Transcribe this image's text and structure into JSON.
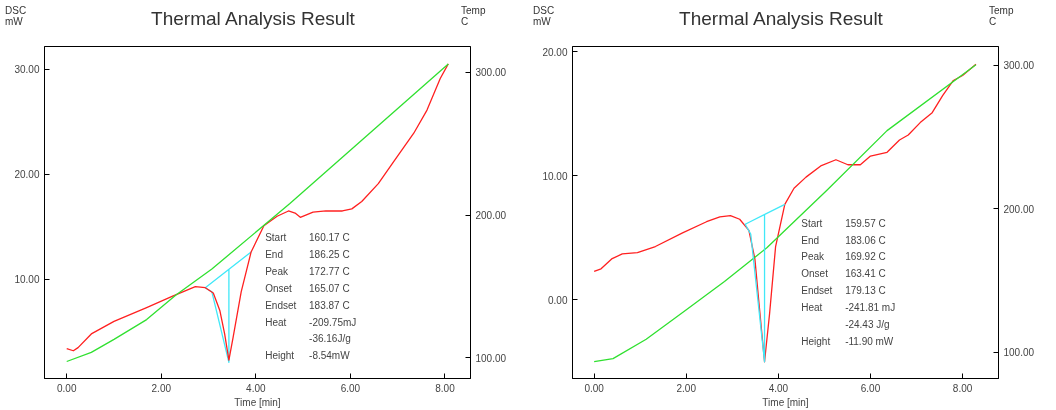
{
  "chart_data": [
    {
      "type": "line",
      "title": "Thermal Analysis Result",
      "xlabel": "Time [min]",
      "ylabel": "DSC\nmW",
      "y2label": "Temp\nC",
      "xlim": [
        -0.47,
        8.54
      ],
      "ylim": [
        0.56,
        32.15
      ],
      "y2lim": [
        85.6,
        317.9
      ],
      "xticks": [
        {
          "value": 0,
          "label": "0.00"
        },
        {
          "value": 2,
          "label": "2.00"
        },
        {
          "value": 4,
          "label": "4.00"
        },
        {
          "value": 6,
          "label": "6.00"
        },
        {
          "value": 8,
          "label": "8.00"
        }
      ],
      "yticks": [
        {
          "value": 10,
          "label": "10.00"
        },
        {
          "value": 20,
          "label": "20.00"
        },
        {
          "value": 30,
          "label": "30.00"
        }
      ],
      "y2ticks": [
        {
          "value": 100,
          "label": "100.00"
        },
        {
          "value": 200,
          "label": "200.00"
        },
        {
          "value": 300,
          "label": "300.00"
        }
      ],
      "grid": false,
      "series": [
        {
          "color": "#40e8f8",
          "x": [
            3.9,
            2.93,
            3.07,
            3.43,
            3.43
          ],
          "values": [
            12.6,
            9.2,
            8.8,
            2.1,
            10.9
          ]
        },
        {
          "color": "#ff2020",
          "x": [
            0,
            0.14,
            0.24,
            0.52,
            1.0,
            1.69,
            2.24,
            2.72,
            2.93,
            3.1,
            3.24,
            3.34,
            3.43,
            3.52,
            3.69,
            3.9,
            4.17,
            4.45,
            4.69,
            4.83,
            4.94,
            5.21,
            5.48,
            5.83,
            6.03,
            6.24,
            6.59,
            6.93,
            7.34,
            7.62,
            7.9,
            8.07
          ],
          "values": [
            3.4,
            3.2,
            3.5,
            4.8,
            6.0,
            7.3,
            8.4,
            9.3,
            9.2,
            8.7,
            7.0,
            4.8,
            2.3,
            4.5,
            8.8,
            12.6,
            15.1,
            16.0,
            16.5,
            16.3,
            15.9,
            16.4,
            16.5,
            16.5,
            16.7,
            17.4,
            19.1,
            21.3,
            23.9,
            26.1,
            29.1,
            30.5
          ]
        },
        {
          "color": "#30e030",
          "axis": "y2",
          "x": [
            0,
            0.52,
            1.0,
            1.69,
            2.31,
            3.07,
            4.72,
            8.07
          ],
          "values": [
            97.5,
            103.9,
            113,
            126.8,
            144,
            162.2,
            208,
            305.7
          ]
        }
      ],
      "annotations": [
        "Start  160.17 C",
        "End  186.25 C",
        "Peak  172.77 C",
        "Onset  165.07 C",
        "Endset  183.87 C",
        "Heat  -209.75mJ",
        "-36.16J/g",
        "Height  -8.54mW"
      ]
    },
    {
      "type": "line",
      "title": "Thermal Analysis Result",
      "xlabel": "Time [min]",
      "ylabel": "DSC\nmW",
      "y2label": "Temp\nC",
      "xlim": [
        -0.47,
        8.78
      ],
      "ylim": [
        -6.35,
        20.44
      ],
      "y2lim": [
        81.6,
        313.2
      ],
      "xticks": [
        {
          "value": 0,
          "label": "0.00"
        },
        {
          "value": 2,
          "label": "2.00"
        },
        {
          "value": 4,
          "label": "4.00"
        },
        {
          "value": 6,
          "label": "6.00"
        },
        {
          "value": 8,
          "label": "8.00"
        }
      ],
      "yticks": [
        {
          "value": 0,
          "label": "0.00"
        },
        {
          "value": 10,
          "label": "10.00"
        },
        {
          "value": 20,
          "label": "20.00"
        }
      ],
      "y2ticks": [
        {
          "value": 100,
          "label": "100.00"
        },
        {
          "value": 200,
          "label": "200.00"
        },
        {
          "value": 300,
          "label": "300.00"
        }
      ],
      "grid": false,
      "series": [
        {
          "color": "#ff2020",
          "x": [
            0,
            0.15,
            0.38,
            0.61,
            0.94,
            1.33,
            1.92,
            2.44,
            2.73,
            2.96,
            3.16,
            3.36,
            3.49,
            3.58,
            3.7,
            3.81,
            3.94,
            4.14,
            4.34,
            4.6,
            4.92,
            5.25,
            5.51,
            5.78,
            6.0,
            6.36,
            6.63,
            6.82,
            7.08,
            7.34,
            7.57,
            7.8,
            8.0,
            8.29
          ],
          "values": [
            2.3,
            2.5,
            3.3,
            3.7,
            3.8,
            4.3,
            5.4,
            6.3,
            6.7,
            6.8,
            6.5,
            5.6,
            3.3,
            -0.3,
            -5.0,
            -1.1,
            4.3,
            7.7,
            9.0,
            9.9,
            10.8,
            11.3,
            10.9,
            10.9,
            11.6,
            11.9,
            12.9,
            13.3,
            14.3,
            15.1,
            16.5,
            17.7,
            18.1,
            19.0
          ]
        },
        {
          "color": "#30e030",
          "axis": "y2",
          "x": [
            0,
            0.41,
            1.13,
            1.98,
            2.83,
            3.75,
            5.06,
            6.36,
            8.29
          ],
          "values": [
            93.3,
            95.5,
            109,
            129,
            149.3,
            172.8,
            213.1,
            254.5,
            300.4
          ]
        },
        {
          "color": "#40e8f8",
          "x": [
            4.14,
            3.28,
            3.4,
            3.7,
            3.7
          ],
          "values": [
            7.7,
            6.1,
            5.3,
            -5.0,
            6.9
          ]
        }
      ],
      "annotations": [
        "Start  159.57 C",
        "End  183.06 C",
        "Peak  169.92 C",
        "Onset  163.41 C",
        "Endset  179.13 C",
        "Heat  -241.81 mJ",
        "-24.43 J/g",
        "Height  -11.90 mW"
      ]
    }
  ]
}
